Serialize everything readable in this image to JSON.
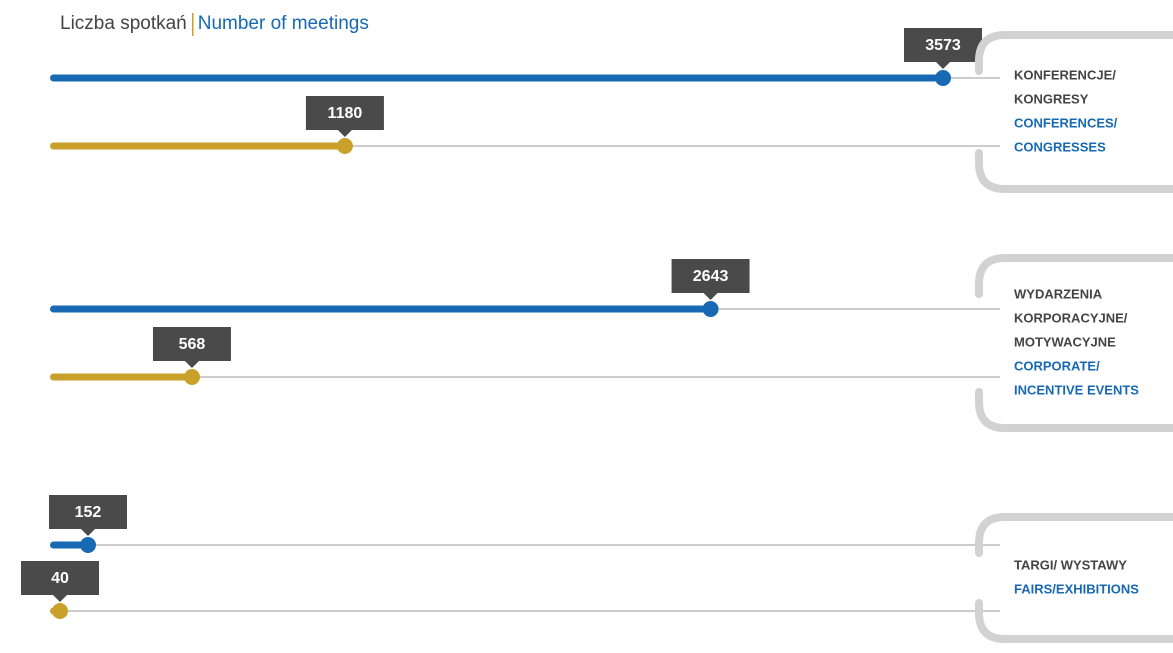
{
  "chart_data": {
    "type": "bar",
    "title": {
      "pl": "Liczba spotkań",
      "en": "Number of meetings"
    },
    "categories": [
      {
        "pl": [
          "KONFERENCJE/",
          "KONGRESY"
        ],
        "en": [
          "CONFERENCES/",
          "CONGRESSES"
        ]
      },
      {
        "pl": [
          "WYDARZENIA",
          "KORPORACYJNE/",
          "MOTYWACYJNE"
        ],
        "en": [
          "CORPORATE/",
          "INCENTIVE EVENTS"
        ]
      },
      {
        "pl": [
          "TARGI/ WYSTAWY"
        ],
        "en": [
          "FAIRS/EXHIBITIONS"
        ]
      }
    ],
    "series": [
      {
        "color": "#1769b3",
        "values": [
          3573,
          2643,
          152
        ]
      },
      {
        "color": "#c9a02a",
        "values": [
          1180,
          568,
          40
        ]
      }
    ]
  }
}
